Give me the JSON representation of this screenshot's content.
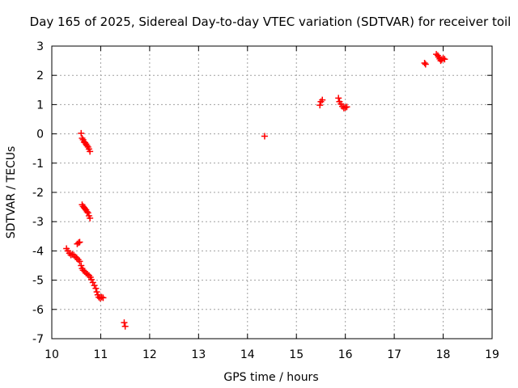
{
  "chart_data": {
    "type": "scatter",
    "title": "Day 165 of 2025, Sidereal Day-to-day VTEC variation (SDTVAR) for receiver toil",
    "xlabel": "GPS time / hours",
    "ylabel": "SDTVAR / TECUs",
    "xlim": [
      10,
      19
    ],
    "ylim": [
      -7,
      3
    ],
    "x_ticks": [
      10,
      11,
      12,
      13,
      14,
      15,
      16,
      17,
      18,
      19
    ],
    "y_ticks": [
      -7,
      -6,
      -5,
      -4,
      -3,
      -2,
      -1,
      0,
      1,
      2,
      3
    ],
    "x_tick_labels": [
      "10",
      "11",
      "12",
      "13",
      "14",
      "15",
      "16",
      "17",
      "18",
      "19"
    ],
    "y_tick_labels": [
      "-7",
      "-6",
      "-5",
      "-4",
      "-3",
      "-2",
      "-1",
      "0",
      "1",
      "2",
      "3"
    ],
    "grid": true,
    "marker": "plus",
    "color": "#ff0000",
    "series": [
      {
        "name": "SDTVAR",
        "points": [
          [
            10.3,
            -3.92
          ],
          [
            10.33,
            -4.0
          ],
          [
            10.36,
            -4.08
          ],
          [
            10.39,
            -4.14
          ],
          [
            10.42,
            -4.12
          ],
          [
            10.45,
            -4.14
          ],
          [
            10.48,
            -4.2
          ],
          [
            10.51,
            -4.24
          ],
          [
            10.54,
            -4.3
          ],
          [
            10.57,
            -4.36
          ],
          [
            10.6,
            -4.5
          ],
          [
            10.62,
            -4.6
          ],
          [
            10.64,
            -4.66
          ],
          [
            10.67,
            -4.7
          ],
          [
            10.7,
            -4.76
          ],
          [
            10.73,
            -4.8
          ],
          [
            10.76,
            -4.84
          ],
          [
            10.79,
            -4.9
          ],
          [
            10.81,
            -4.98
          ],
          [
            10.84,
            -5.08
          ],
          [
            10.87,
            -5.18
          ],
          [
            10.9,
            -5.28
          ],
          [
            10.92,
            -5.4
          ],
          [
            10.94,
            -5.5
          ],
          [
            10.96,
            -5.58
          ],
          [
            10.99,
            -5.62
          ],
          [
            11.02,
            -5.58
          ],
          [
            11.05,
            -5.6
          ],
          [
            10.52,
            -3.76
          ],
          [
            10.55,
            -3.72
          ],
          [
            10.57,
            -3.7
          ],
          [
            10.6,
            0.02
          ],
          [
            10.62,
            -0.15
          ],
          [
            10.64,
            -0.2
          ],
          [
            10.66,
            -0.28
          ],
          [
            10.68,
            -0.3
          ],
          [
            10.7,
            -0.35
          ],
          [
            10.72,
            -0.4
          ],
          [
            10.74,
            -0.45
          ],
          [
            10.76,
            -0.52
          ],
          [
            10.78,
            -0.6
          ],
          [
            10.62,
            -2.42
          ],
          [
            10.64,
            -2.48
          ],
          [
            10.66,
            -2.52
          ],
          [
            10.68,
            -2.56
          ],
          [
            10.7,
            -2.6
          ],
          [
            10.72,
            -2.66
          ],
          [
            10.74,
            -2.7
          ],
          [
            10.76,
            -2.8
          ],
          [
            10.78,
            -2.88
          ],
          [
            11.48,
            -6.45
          ],
          [
            11.5,
            -6.58
          ],
          [
            14.35,
            -0.08
          ],
          [
            15.48,
            0.98
          ],
          [
            15.5,
            1.1
          ],
          [
            15.53,
            1.16
          ],
          [
            15.86,
            1.22
          ],
          [
            15.88,
            1.1
          ],
          [
            15.91,
            1.02
          ],
          [
            15.94,
            0.94
          ],
          [
            15.97,
            0.88
          ],
          [
            16.0,
            0.9
          ],
          [
            16.03,
            0.92
          ],
          [
            17.62,
            2.42
          ],
          [
            17.64,
            2.38
          ],
          [
            17.86,
            2.72
          ],
          [
            17.89,
            2.68
          ],
          [
            17.91,
            2.62
          ],
          [
            17.93,
            2.56
          ],
          [
            17.95,
            2.5
          ],
          [
            17.97,
            2.54
          ],
          [
            18.0,
            2.58
          ],
          [
            18.03,
            2.55
          ]
        ]
      }
    ]
  }
}
